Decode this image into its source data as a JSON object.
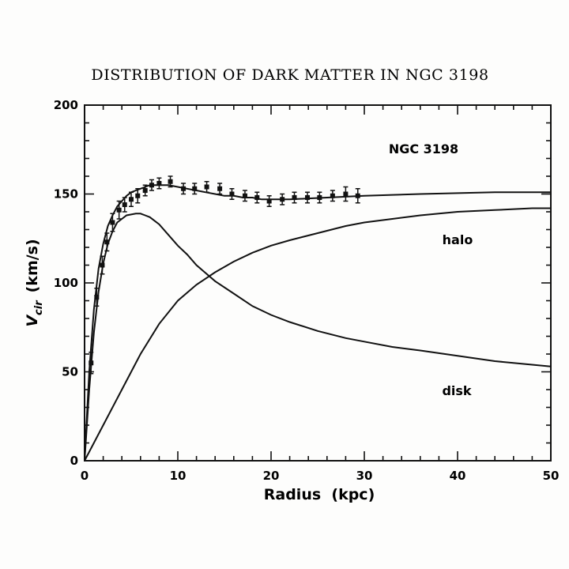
{
  "chart_data": {
    "type": "line",
    "title": "DISTRIBUTION OF DARK MATTER IN NGC 3198",
    "xlabel": "Radius  (kpc)",
    "ylabel_main": "V",
    "ylabel_sub": "cir",
    "ylabel_units": "(km/s)",
    "xlim": [
      0,
      50
    ],
    "ylim": [
      0,
      200
    ],
    "x_ticks": [
      "0",
      "10",
      "20",
      "30",
      "40",
      "50"
    ],
    "y_ticks": [
      "0",
      "50",
      "100",
      "150",
      "200"
    ],
    "grid": false,
    "annotations": {
      "galaxy": "NGC 3198",
      "halo": "halo",
      "disk": "disk"
    },
    "series": [
      {
        "name": "observed",
        "marker": "square-errorbar",
        "points": [
          {
            "x": 0.7,
            "y": 55,
            "err": 6
          },
          {
            "x": 1.3,
            "y": 92,
            "err": 5
          },
          {
            "x": 1.9,
            "y": 110,
            "err": 5
          },
          {
            "x": 2.4,
            "y": 123,
            "err": 5
          },
          {
            "x": 3.0,
            "y": 134,
            "err": 5
          },
          {
            "x": 3.7,
            "y": 141,
            "err": 5
          },
          {
            "x": 4.3,
            "y": 144,
            "err": 4
          },
          {
            "x": 5.0,
            "y": 147,
            "err": 4
          },
          {
            "x": 5.7,
            "y": 149,
            "err": 4
          },
          {
            "x": 6.5,
            "y": 152,
            "err": 3
          },
          {
            "x": 7.2,
            "y": 155,
            "err": 3
          },
          {
            "x": 8.0,
            "y": 156,
            "err": 3
          },
          {
            "x": 9.2,
            "y": 157,
            "err": 3
          },
          {
            "x": 10.6,
            "y": 153,
            "err": 3
          },
          {
            "x": 11.8,
            "y": 153,
            "err": 3
          },
          {
            "x": 13.1,
            "y": 154,
            "err": 3
          },
          {
            "x": 14.5,
            "y": 153,
            "err": 3
          },
          {
            "x": 15.8,
            "y": 150,
            "err": 3
          },
          {
            "x": 17.2,
            "y": 149,
            "err": 3
          },
          {
            "x": 18.5,
            "y": 148,
            "err": 3
          },
          {
            "x": 19.8,
            "y": 146,
            "err": 3
          },
          {
            "x": 21.2,
            "y": 147,
            "err": 3
          },
          {
            "x": 22.5,
            "y": 148,
            "err": 3
          },
          {
            "x": 23.9,
            "y": 148,
            "err": 3
          },
          {
            "x": 25.2,
            "y": 148,
            "err": 3
          },
          {
            "x": 26.6,
            "y": 149,
            "err": 3
          },
          {
            "x": 28.0,
            "y": 150,
            "err": 4
          },
          {
            "x": 29.3,
            "y": 149,
            "err": 4
          }
        ]
      },
      {
        "name": "total",
        "x": [
          0,
          0.5,
          1,
          1.5,
          2,
          2.5,
          3,
          3.5,
          4,
          4.5,
          5,
          5.5,
          6,
          6.5,
          7,
          8,
          9,
          10,
          11,
          12,
          13,
          14,
          15,
          16,
          17,
          18,
          19,
          20,
          21,
          22,
          24,
          26,
          28,
          30,
          33,
          36,
          40,
          44,
          48,
          50
        ],
        "y": [
          0,
          50,
          85,
          108,
          122,
          132,
          138,
          143,
          146,
          149,
          151,
          152,
          153,
          154,
          155,
          155,
          155,
          154,
          153,
          152,
          151,
          150,
          149,
          149,
          148,
          148,
          147,
          147,
          147,
          147,
          147.5,
          148,
          148.5,
          149,
          149.5,
          150,
          150.5,
          151,
          151,
          151
        ]
      },
      {
        "name": "halo",
        "x": [
          0,
          2,
          4,
          6,
          8,
          10,
          12,
          14,
          16,
          18,
          20,
          22,
          25,
          28,
          30,
          33,
          36,
          40,
          44,
          48,
          50
        ],
        "y": [
          0,
          20,
          40,
          60,
          77,
          90,
          99,
          106,
          112,
          117,
          121,
          124,
          128,
          132,
          134,
          136,
          138,
          140,
          141,
          142,
          142
        ]
      },
      {
        "name": "disk",
        "x": [
          0,
          0.5,
          1,
          1.5,
          2,
          2.5,
          3,
          3.5,
          4,
          4.5,
          5,
          5.5,
          6,
          6.5,
          7,
          8,
          9,
          10,
          11,
          12,
          14,
          16,
          18,
          20,
          22,
          25,
          28,
          30,
          33,
          36,
          40,
          44,
          48,
          50
        ],
        "y": [
          0,
          40,
          72,
          95,
          111,
          122,
          129,
          134,
          136,
          138,
          138.5,
          139,
          139,
          138,
          137,
          133,
          127,
          121,
          116,
          110,
          101,
          94,
          87,
          82,
          78,
          73,
          69,
          67,
          64,
          62,
          59,
          56,
          54,
          53
        ]
      }
    ]
  }
}
